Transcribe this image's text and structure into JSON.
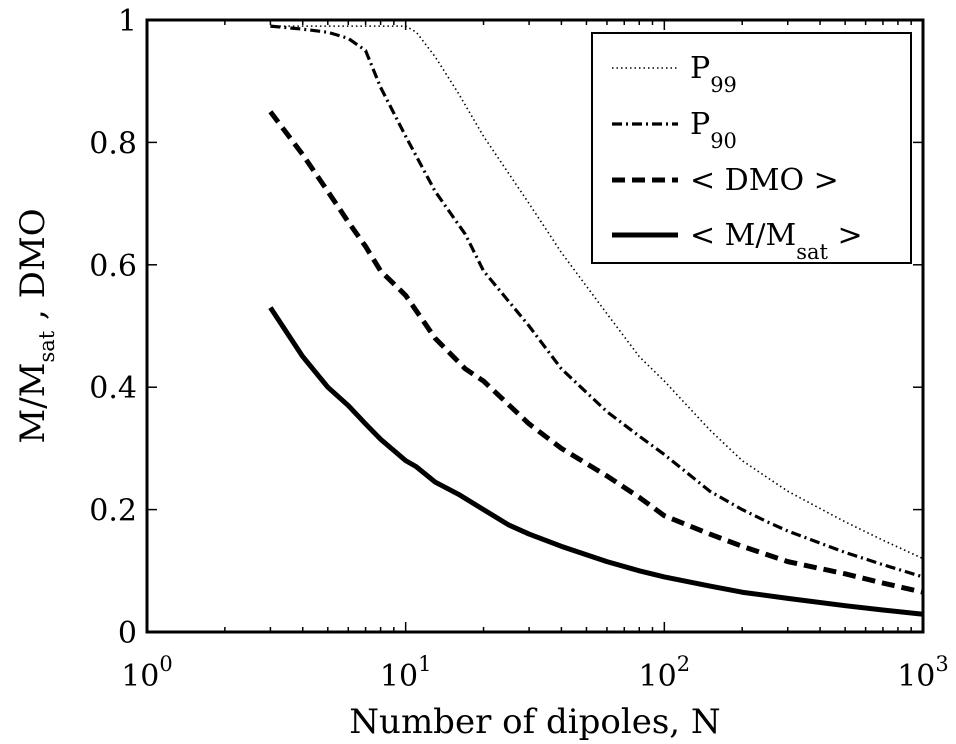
{
  "chart_data": {
    "type": "line",
    "xscale": "log",
    "xlim": [
      1,
      1000
    ],
    "ylim": [
      0,
      1
    ],
    "xlabel": "Number of dipoles, N",
    "ylabel": {
      "part1": "M/M",
      "part1_sub": "sat",
      "part2": " ,  DMO"
    },
    "x_ticks": [
      {
        "base": "10",
        "exp": "0"
      },
      {
        "base": "10",
        "exp": "1"
      },
      {
        "base": "10",
        "exp": "2"
      },
      {
        "base": "10",
        "exp": "3"
      }
    ],
    "y_ticks": [
      "0",
      "0.2",
      "0.4",
      "0.6",
      "0.8",
      "1"
    ],
    "legend_position": "top-right",
    "grid": false,
    "series": [
      {
        "name": "P99",
        "legend": {
          "main": "P",
          "sub": "99"
        },
        "style": "dotted",
        "points": [
          [
            3,
            0.99
          ],
          [
            4,
            0.99
          ],
          [
            6,
            0.99
          ],
          [
            8,
            0.99
          ],
          [
            10,
            0.99
          ],
          [
            11,
            0.98
          ],
          [
            13,
            0.94
          ],
          [
            16,
            0.88
          ],
          [
            20,
            0.81
          ],
          [
            30,
            0.7
          ],
          [
            40,
            0.62
          ],
          [
            60,
            0.52
          ],
          [
            80,
            0.45
          ],
          [
            100,
            0.41
          ],
          [
            150,
            0.33
          ],
          [
            200,
            0.28
          ],
          [
            300,
            0.23
          ],
          [
            500,
            0.18
          ],
          [
            700,
            0.15
          ],
          [
            1000,
            0.12
          ]
        ]
      },
      {
        "name": "P90",
        "legend": {
          "main": "P",
          "sub": "90"
        },
        "style": "dashdot",
        "points": [
          [
            3,
            0.99
          ],
          [
            4,
            0.985
          ],
          [
            5,
            0.98
          ],
          [
            6,
            0.97
          ],
          [
            7,
            0.95
          ],
          [
            8,
            0.89
          ],
          [
            10,
            0.81
          ],
          [
            13,
            0.72
          ],
          [
            17,
            0.65
          ],
          [
            20,
            0.59
          ],
          [
            30,
            0.5
          ],
          [
            40,
            0.43
          ],
          [
            60,
            0.36
          ],
          [
            80,
            0.32
          ],
          [
            100,
            0.29
          ],
          [
            150,
            0.23
          ],
          [
            200,
            0.2
          ],
          [
            250,
            0.18
          ],
          [
            300,
            0.165
          ],
          [
            500,
            0.13
          ],
          [
            700,
            0.11
          ],
          [
            1000,
            0.09
          ]
        ]
      },
      {
        "name": "< DMO >",
        "legend": {
          "main": "< DMO >",
          "sub": ""
        },
        "style": "dashed",
        "points": [
          [
            3,
            0.85
          ],
          [
            4,
            0.78
          ],
          [
            5,
            0.72
          ],
          [
            6,
            0.67
          ],
          [
            7,
            0.63
          ],
          [
            8,
            0.59
          ],
          [
            10,
            0.55
          ],
          [
            13,
            0.48
          ],
          [
            17,
            0.43
          ],
          [
            20,
            0.41
          ],
          [
            30,
            0.34
          ],
          [
            40,
            0.3
          ],
          [
            60,
            0.255
          ],
          [
            80,
            0.22
          ],
          [
            100,
            0.19
          ],
          [
            150,
            0.16
          ],
          [
            200,
            0.14
          ],
          [
            300,
            0.115
          ],
          [
            500,
            0.095
          ],
          [
            700,
            0.08
          ],
          [
            1000,
            0.065
          ]
        ]
      },
      {
        "name": "< M/Msat >",
        "legend": {
          "main": "< M/M",
          "sub": "sat",
          "post": " >"
        },
        "style": "solid",
        "points": [
          [
            3,
            0.53
          ],
          [
            4,
            0.45
          ],
          [
            5,
            0.4
          ],
          [
            6,
            0.37
          ],
          [
            7,
            0.34
          ],
          [
            8,
            0.315
          ],
          [
            10,
            0.28
          ],
          [
            11,
            0.27
          ],
          [
            13,
            0.245
          ],
          [
            16,
            0.225
          ],
          [
            20,
            0.2
          ],
          [
            25,
            0.175
          ],
          [
            30,
            0.16
          ],
          [
            40,
            0.14
          ],
          [
            60,
            0.115
          ],
          [
            80,
            0.1
          ],
          [
            100,
            0.09
          ],
          [
            150,
            0.075
          ],
          [
            200,
            0.065
          ],
          [
            300,
            0.055
          ],
          [
            500,
            0.043
          ],
          [
            700,
            0.036
          ],
          [
            1000,
            0.029
          ]
        ]
      }
    ]
  }
}
